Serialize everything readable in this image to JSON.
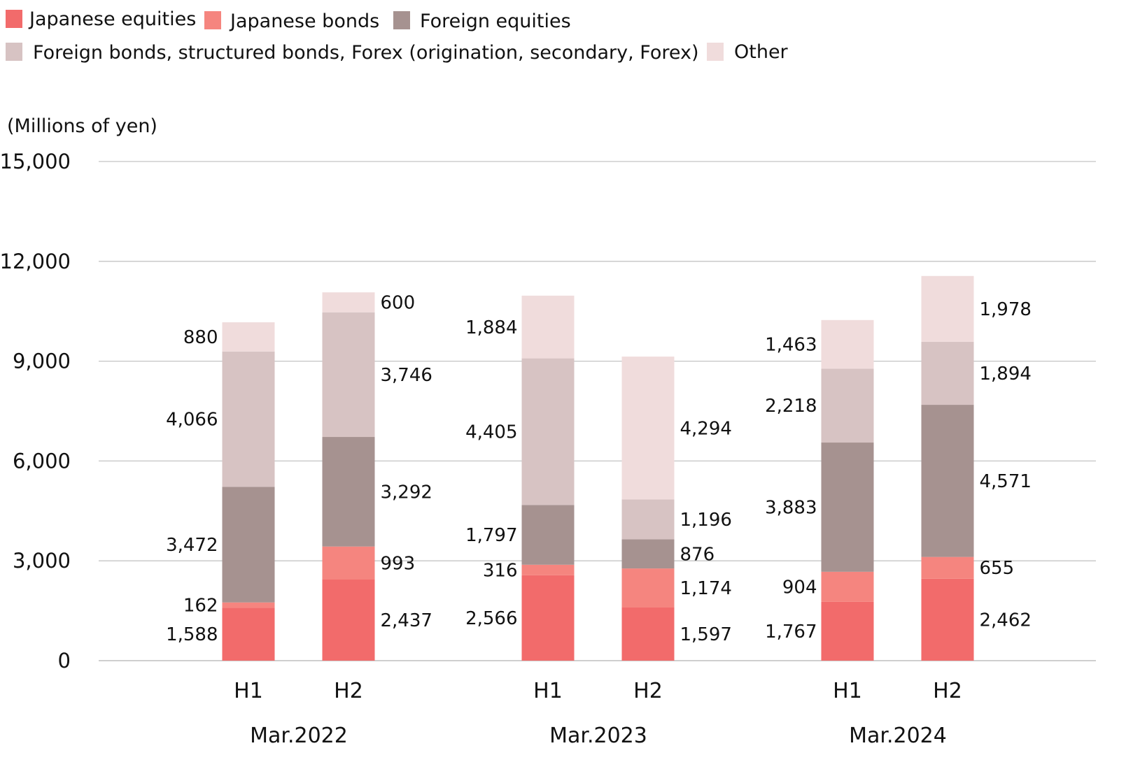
{
  "chart_data": {
    "type": "bar",
    "stacked": true,
    "unit_label": "(Millions of yen)",
    "ylim": [
      0,
      15000
    ],
    "yticks": [
      0,
      3000,
      6000,
      9000,
      12000,
      15000
    ],
    "ytick_labels": [
      "0",
      "3,000",
      "6,000",
      "9,000",
      "12,000",
      "15,000"
    ],
    "grid": true,
    "legend_position": "top-left",
    "groups": [
      "Mar.2022",
      "Mar.2023",
      "Mar.2024"
    ],
    "categories": [
      "H1",
      "H2",
      "H1",
      "H2",
      "H1",
      "H2"
    ],
    "series": [
      {
        "name": "Japanese equities",
        "color": "#f26b6b",
        "values": [
          1588,
          2437,
          2566,
          1597,
          1767,
          2462
        ],
        "labels": [
          "1,588",
          "2,437",
          "2,566",
          "1,597",
          "1,767",
          "2,462"
        ]
      },
      {
        "name": "Japanese bonds",
        "color": "#f5857f",
        "values": [
          162,
          993,
          316,
          1174,
          904,
          655
        ],
        "labels": [
          "162",
          "993",
          "316",
          "1,174",
          "904",
          "655"
        ]
      },
      {
        "name": "Foreign equities",
        "color": "#a69290",
        "values": [
          3472,
          3292,
          1797,
          876,
          3883,
          4571
        ],
        "labels": [
          "3,472",
          "3,292",
          "1,797",
          "876",
          "3,883",
          "4,571"
        ]
      },
      {
        "name": "Foreign bonds, structured bonds, Forex (origination, secondary, Forex)",
        "color": "#d7c3c3",
        "values": [
          4066,
          3746,
          4405,
          1196,
          2218,
          1894
        ],
        "labels": [
          "4,066",
          "3,746",
          "4,405",
          "1,196",
          "2,218",
          "1,894"
        ]
      },
      {
        "name": "Other",
        "color": "#f0dcdc",
        "values": [
          880,
          600,
          1884,
          4294,
          1463,
          1978
        ],
        "labels": [
          "880",
          "600",
          "1,884",
          "4,294",
          "1,463",
          "1,978"
        ]
      }
    ]
  }
}
